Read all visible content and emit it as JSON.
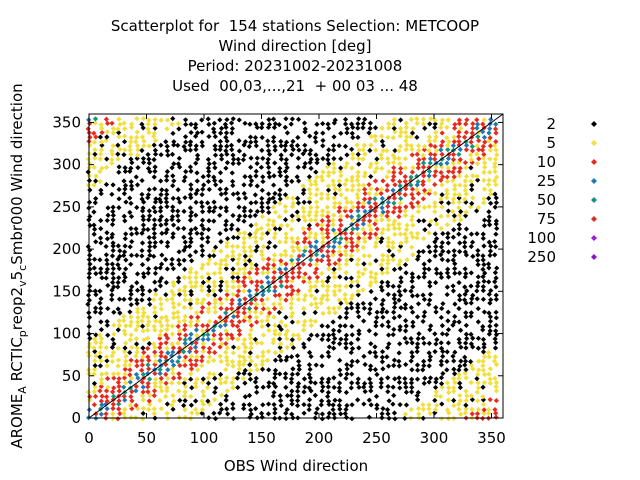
{
  "chart_data": {
    "type": "scatter",
    "title_lines": [
      "Scatterplot for  154 stations Selection: METCOOP",
      "Wind direction [deg]",
      "Period: 20231002-20231008",
      "Used  00,03,...,21  + 00 03 ... 48"
    ],
    "xlabel": "OBS Wind direction",
    "ylabel_parts": {
      "a": "AROME",
      "a_sub": "A",
      "b": "RCTIC",
      "b_sub": "p",
      "c": "reop2",
      "c_sub": "v",
      "d": "5",
      "d_sub": "c",
      "e": "Smbr000 Wind direction"
    },
    "xlim": [
      0,
      360
    ],
    "ylim": [
      0,
      360
    ],
    "xticks": [
      "0",
      "50",
      "100",
      "150",
      "200",
      "250",
      "300",
      "350"
    ],
    "yticks": [
      "0",
      "50",
      "100",
      "150",
      "200",
      "250",
      "300",
      "350"
    ],
    "grid": false,
    "diagonal_line": true,
    "legend_position": "right",
    "legend": [
      {
        "label": "2",
        "color": "#000000"
      },
      {
        "label": "5",
        "color": "#f2df3a"
      },
      {
        "label": "10",
        "color": "#e8291c"
      },
      {
        "label": "25",
        "color": "#1f78b4"
      },
      {
        "label": "50",
        "color": "#12957a"
      },
      {
        "label": "75",
        "color": "#d7301f"
      },
      {
        "label": "100",
        "color": "#9e1fd1"
      },
      {
        "label": "250",
        "color": "#8a16c9"
      }
    ],
    "notes": "Density scatter: each grid cell coloured by count class; highest counts lie along the diagonal y = x."
  }
}
